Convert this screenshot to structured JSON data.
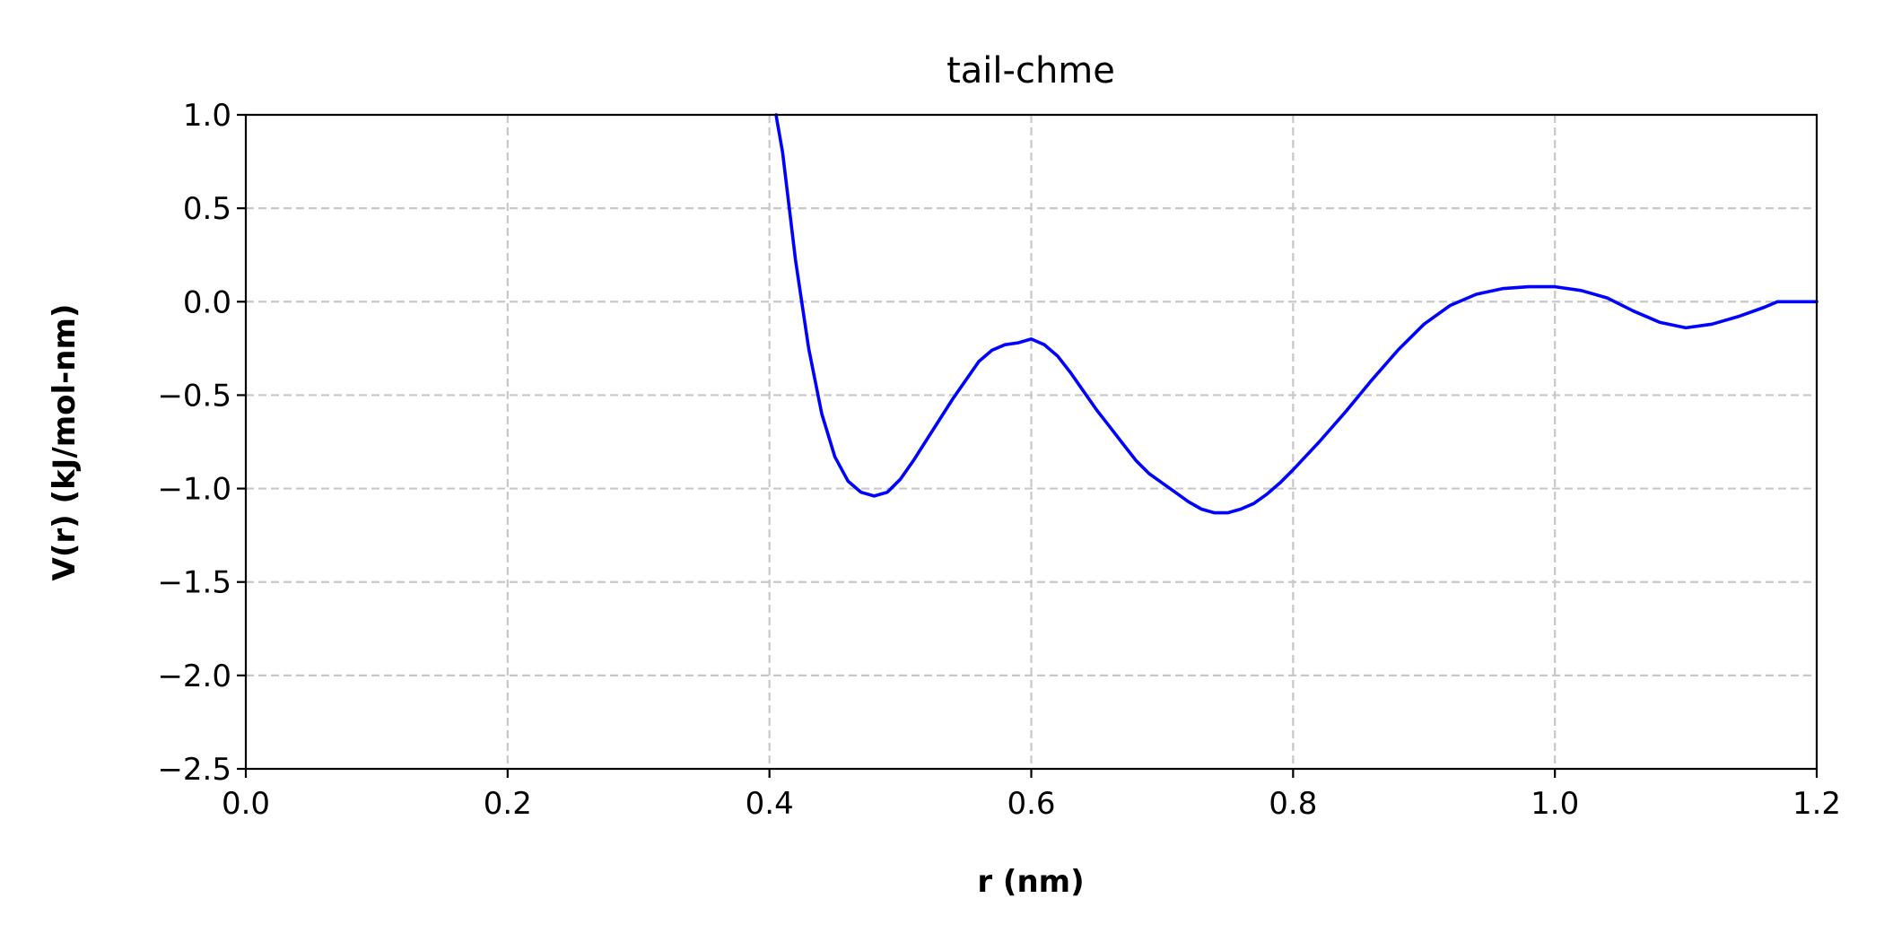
{
  "chart_data": {
    "type": "line",
    "title": "tail-chme",
    "xlabel": "r (nm)",
    "ylabel": "V(r)  (kJ/mol-nm)",
    "xlim": [
      0.0,
      1.2
    ],
    "ylim": [
      -2.5,
      1.0
    ],
    "xticks": [
      "0.0",
      "0.2",
      "0.4",
      "0.6",
      "0.8",
      "1.0",
      "1.2"
    ],
    "yticks": [
      "1.0",
      "0.5",
      "0.0",
      "−0.5",
      "−1.0",
      "−1.5",
      "−2.0",
      "−2.5"
    ],
    "grid": true,
    "line_color": "#0000ff",
    "series": [
      {
        "x": [
          0.405,
          0.41,
          0.42,
          0.43,
          0.44,
          0.45,
          0.46,
          0.47,
          0.48,
          0.49,
          0.5,
          0.51,
          0.52,
          0.53,
          0.54,
          0.55,
          0.56,
          0.57,
          0.58,
          0.59,
          0.6,
          0.61,
          0.62,
          0.63,
          0.64,
          0.65,
          0.66,
          0.67,
          0.68,
          0.69,
          0.7,
          0.71,
          0.72,
          0.73,
          0.74,
          0.75,
          0.76,
          0.77,
          0.78,
          0.79,
          0.8,
          0.82,
          0.84,
          0.86,
          0.88,
          0.9,
          0.92,
          0.94,
          0.96,
          0.98,
          1.0,
          1.02,
          1.04,
          1.06,
          1.08,
          1.1,
          1.12,
          1.14,
          1.16,
          1.17,
          1.2
        ],
        "y": [
          1.0,
          0.8,
          0.22,
          -0.25,
          -0.6,
          -0.83,
          -0.96,
          -1.02,
          -1.04,
          -1.02,
          -0.95,
          -0.85,
          -0.74,
          -0.63,
          -0.52,
          -0.42,
          -0.32,
          -0.26,
          -0.23,
          -0.22,
          -0.2,
          -0.23,
          -0.29,
          -0.38,
          -0.48,
          -0.58,
          -0.67,
          -0.76,
          -0.85,
          -0.92,
          -0.97,
          -1.02,
          -1.07,
          -1.11,
          -1.13,
          -1.13,
          -1.11,
          -1.08,
          -1.03,
          -0.97,
          -0.9,
          -0.75,
          -0.59,
          -0.42,
          -0.26,
          -0.12,
          -0.02,
          0.04,
          0.07,
          0.08,
          0.08,
          0.06,
          0.02,
          -0.05,
          -0.11,
          -0.14,
          -0.12,
          -0.08,
          -0.03,
          0.0,
          0.0
        ]
      }
    ]
  }
}
